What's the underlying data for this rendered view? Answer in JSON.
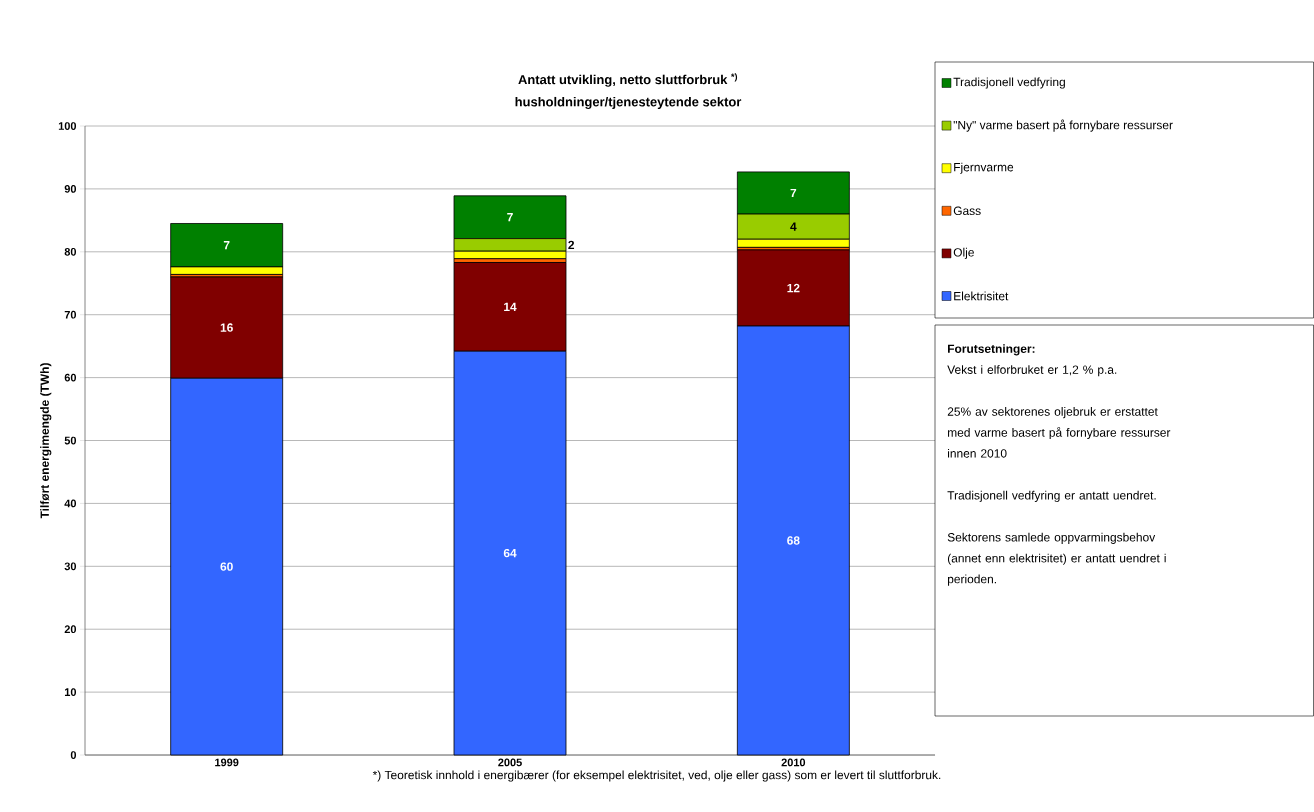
{
  "chart_data": {
    "type": "bar",
    "stacked": true,
    "title": "Antatt utvikling, netto sluttforbruk $^{*)}$",
    "subtitle": "husholdninger/tjenesteytende sektor",
    "ylabel": "Tilført energimengde (TWh)",
    "categories": [
      "1999",
      "2005",
      "2010"
    ],
    "series": [
      {
        "name": "Elektrisitet",
        "color": "#3366ff",
        "values": [
          59.9,
          64.2,
          68.2
        ],
        "value_labels": [
          "60",
          "64",
          "68"
        ]
      },
      {
        "name": "Olje",
        "color": "#800000",
        "values": [
          16.1,
          14.1,
          12.1
        ],
        "value_labels": [
          "16",
          "14",
          "12"
        ]
      },
      {
        "name": "Gass",
        "color": "#ff6600",
        "values": [
          0.4,
          0.6,
          0.4
        ]
      },
      {
        "name": "Fjernvarme",
        "color": "#ffff00",
        "values": [
          1.2,
          1.2,
          1.3
        ]
      },
      {
        "name": "\"Ny\" varme basert på fornybare ressurser",
        "color": "#99cc00",
        "values": [
          0,
          2.0,
          4.0
        ],
        "value_labels": [
          null,
          "2",
          "4"
        ]
      },
      {
        "name": "Tradisjonell vedfyring",
        "color": "#008000",
        "values": [
          6.9,
          6.8,
          6.7
        ],
        "value_labels": [
          "7",
          "7",
          "7"
        ]
      }
    ],
    "ylim": [
      0,
      100
    ],
    "yticks": [
      0,
      10,
      20,
      30,
      40,
      50,
      60,
      70,
      80,
      90,
      100
    ],
    "grid": "y",
    "legend": "right",
    "annotations": [
      "Forutsetninger:",
      "Vekst i elforbruket er 1,2 % p.a.",
      "25% av sektorenes oljebruk er erstattet med varme basert på fornybare ressurser innen 2010",
      "Tradisjonell vedfyring er antatt uendret.",
      "Sektorens samlede oppvarmingsbehov (annet enn elektrisitet) er antatt uendret i perioden.",
      "*) Teoretisk innhold i energibærer (for eksempel elektrisitet, ved, olje eller gass) som er levert til sluttforbruk."
    ]
  }
}
